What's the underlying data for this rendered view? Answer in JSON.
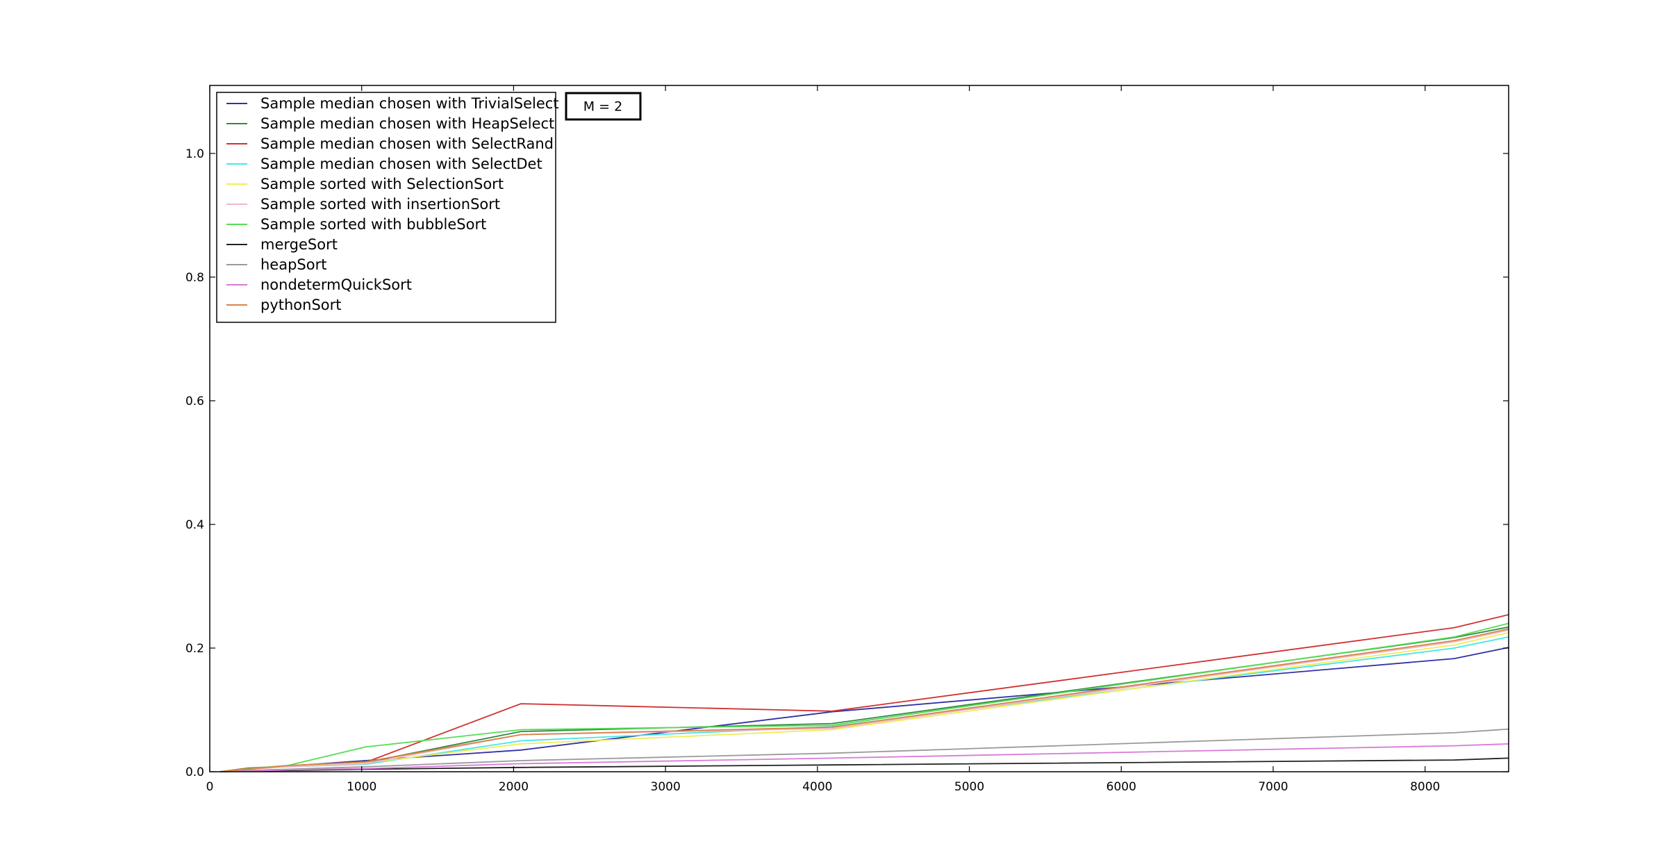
{
  "chart_data": {
    "type": "line",
    "title": "",
    "xlabel": "",
    "ylabel": "",
    "xlim": [
      0,
      8550
    ],
    "ylim": [
      0,
      1.11
    ],
    "x_ticks": [
      0,
      1000,
      2000,
      3000,
      4000,
      5000,
      6000,
      7000,
      8000
    ],
    "x_tick_labels": [
      "0",
      "1000",
      "2000",
      "3000",
      "4000",
      "5000",
      "6000",
      "7000",
      "8000"
    ],
    "y_ticks": [
      0.0,
      0.2,
      0.4,
      0.6,
      0.8,
      1.0
    ],
    "y_tick_labels": [
      "0.0",
      "0.2",
      "0.4",
      "0.6",
      "0.8",
      "1.0"
    ],
    "grid": false,
    "legend_position": "top-left",
    "annotation": "M = 2",
    "x": [
      64,
      256,
      512,
      1024,
      2048,
      4096,
      8192,
      8550
    ],
    "series": [
      {
        "name": "Sample median chosen with TrivialSelect",
        "color": "#3030a8",
        "values": [
          0.0,
          0.005,
          0.009,
          0.018,
          0.035,
          0.097,
          0.183,
          0.201
        ]
      },
      {
        "name": "Sample median chosen with HeapSelect",
        "color": "#2e8b3e",
        "values": [
          0.0,
          0.005,
          0.01,
          0.015,
          0.065,
          0.078,
          0.217,
          0.234
        ]
      },
      {
        "name": "Sample median chosen with SelectRand",
        "color": "#d03030",
        "values": [
          0.0,
          0.006,
          0.009,
          0.015,
          0.11,
          0.098,
          0.233,
          0.254
        ]
      },
      {
        "name": "Sample median chosen with SelectDet",
        "color": "#44e6e6",
        "values": [
          0.0,
          0.004,
          0.008,
          0.012,
          0.05,
          0.073,
          0.2,
          0.218
        ]
      },
      {
        "name": "Sample sorted with SelectionSort",
        "color": "#eeee55",
        "values": [
          0.0,
          0.004,
          0.008,
          0.014,
          0.045,
          0.068,
          0.205,
          0.225
        ]
      },
      {
        "name": "Sample sorted with insertionSort",
        "color": "#f2b8c6",
        "values": [
          0.0,
          0.004,
          0.008,
          0.013,
          0.06,
          0.07,
          0.21,
          0.229
        ]
      },
      {
        "name": "Sample sorted with bubbleSort",
        "color": "#55dd55",
        "values": [
          0.0,
          0.005,
          0.01,
          0.04,
          0.068,
          0.075,
          0.218,
          0.24
        ]
      },
      {
        "name": "mergeSort",
        "color": "#202020",
        "values": [
          0.0,
          0.001,
          0.002,
          0.004,
          0.007,
          0.011,
          0.019,
          0.022
        ]
      },
      {
        "name": "heapSort",
        "color": "#999999",
        "values": [
          0.0,
          0.002,
          0.004,
          0.008,
          0.018,
          0.03,
          0.063,
          0.069
        ]
      },
      {
        "name": "nondetermQuickSort",
        "color": "#d77ad7",
        "values": [
          0.0,
          0.001,
          0.003,
          0.005,
          0.013,
          0.022,
          0.042,
          0.045
        ]
      },
      {
        "name": "pythonSort",
        "color": "#d9824a",
        "values": [
          0.0,
          0.004,
          0.01,
          0.016,
          0.06,
          0.072,
          0.212,
          0.231
        ]
      }
    ]
  }
}
